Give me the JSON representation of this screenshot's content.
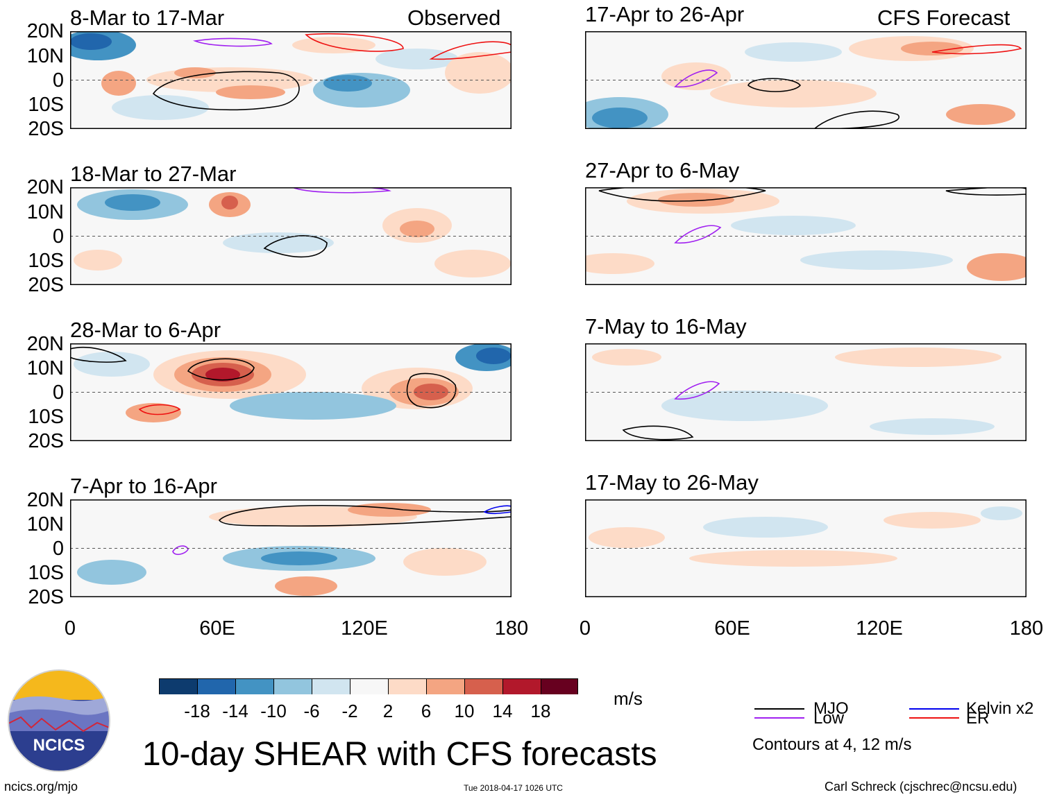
{
  "columns": {
    "observed": {
      "label": "Observed",
      "panels": [
        {
          "id": "p1",
          "date": "8-Mar to 17-Mar"
        },
        {
          "id": "p2",
          "date": "18-Mar to 27-Mar"
        },
        {
          "id": "p3",
          "date": "28-Mar to 6-Apr"
        },
        {
          "id": "p4",
          "date": "7-Apr to 16-Apr"
        }
      ]
    },
    "forecast": {
      "label": "CFS Forecast",
      "panels": [
        {
          "id": "p5",
          "date": "17-Apr to 26-Apr"
        },
        {
          "id": "p6",
          "date": "27-Apr to 6-May"
        },
        {
          "id": "p7",
          "date": "7-May to 16-May"
        },
        {
          "id": "p8",
          "date": "17-May to 26-May"
        }
      ]
    }
  },
  "y_ticks": [
    "20N",
    "10N",
    "0",
    "10S",
    "20S"
  ],
  "x_ticks": [
    "0",
    "60E",
    "120E",
    "180"
  ],
  "colorbar": {
    "unit": "m/s",
    "labels": [
      "-18",
      "-14",
      "-10",
      "-6",
      "-2",
      "2",
      "6",
      "10",
      "14",
      "18"
    ],
    "colors": [
      "#0d3b6e",
      "#2166ac",
      "#4393c3",
      "#92c5de",
      "#d1e5f0",
      "#f7f7f7",
      "#fddbc7",
      "#f4a582",
      "#d6604d",
      "#b2182b",
      "#67001f"
    ]
  },
  "legend": {
    "items": [
      {
        "label": "MJO",
        "color": "#000000"
      },
      {
        "label": "Kelvin x2",
        "color": "#0000ee"
      },
      {
        "label": "Low",
        "color": "#a020f0"
      },
      {
        "label": "ER",
        "color": "#ee1111"
      }
    ],
    "note": "Contours at 4, 12 m/s"
  },
  "title": "10-day SHEAR with CFS forecasts",
  "logo_text": "NCICS",
  "footer": {
    "url": "ncics.org/mjo",
    "timestamp": "Tue 2018-04-17 1026 UTC",
    "credit": "Carl Schreck (cjschrec@ncsu.edu)"
  }
}
